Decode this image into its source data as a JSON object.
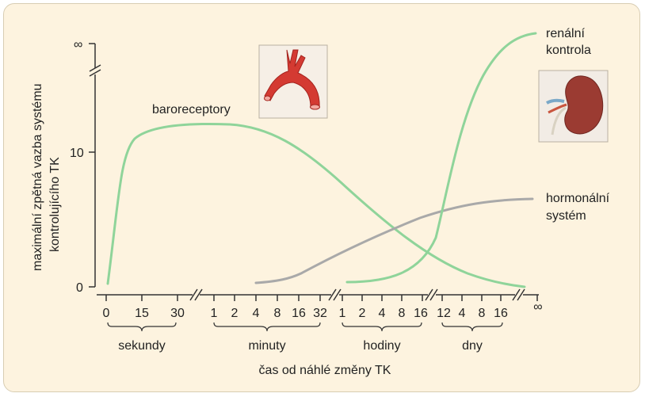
{
  "y_axis": {
    "label_line1": "maximální zpětná vazba systému",
    "label_line2": "kontrolujícího TK",
    "ticks": [
      "0",
      "10",
      "∞"
    ]
  },
  "x_axis": {
    "label": "čas od náhlé změny TK",
    "groups": [
      {
        "name": "sekundy",
        "ticks": [
          "0",
          "15",
          "30"
        ]
      },
      {
        "name": "minuty",
        "ticks": [
          "1",
          "2",
          "4",
          "8",
          "16",
          "32"
        ]
      },
      {
        "name": "hodiny",
        "ticks": [
          "1",
          "2",
          "4",
          "8",
          "16"
        ]
      },
      {
        "name": "dny",
        "ticks": [
          "12",
          "4",
          "8",
          "16"
        ]
      }
    ],
    "end_tick": "∞"
  },
  "curves": [
    {
      "label": "baroreceptory",
      "color": "#8fd49a"
    },
    {
      "label_line1": "hormonální",
      "label_line2": "systém",
      "color": "#a9a9a9"
    },
    {
      "label_line1": "renální",
      "label_line2": "kontrola",
      "color": "#8fd49a"
    }
  ],
  "images": {
    "artery": "aortic-arch-icon",
    "kidney": "kidney-icon"
  }
}
